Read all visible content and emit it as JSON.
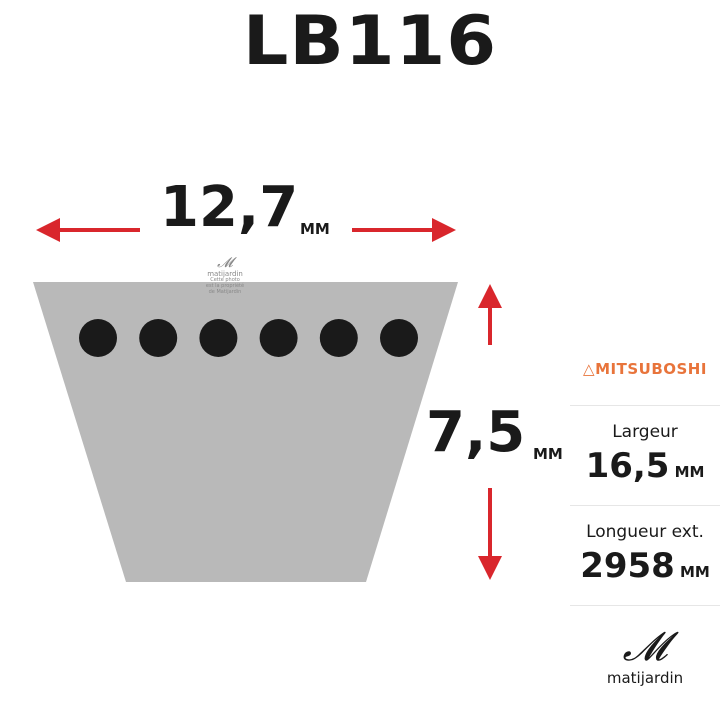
{
  "title": "LB116",
  "top_width": {
    "value": "12,7",
    "unit": "MM"
  },
  "height": {
    "value": "7,5",
    "unit": "MM"
  },
  "brand": {
    "name": "MITSUBOSHI",
    "color": "#e8743b"
  },
  "specs": [
    {
      "label": "Largeur",
      "value": "16,5",
      "unit": "MM"
    },
    {
      "label": "Longueur ext.",
      "value": "2958",
      "unit": "MM"
    }
  ],
  "watermark": {
    "name": "matijardin",
    "lines": [
      "Cette photo",
      "est la propriété",
      "de Matijardin"
    ]
  },
  "logo": {
    "name": "matijardin"
  },
  "belt": {
    "dot_count": 6,
    "color": "#b9b9b9",
    "dot_color": "#1a1a1a"
  },
  "arrow_color": "#d9262c"
}
